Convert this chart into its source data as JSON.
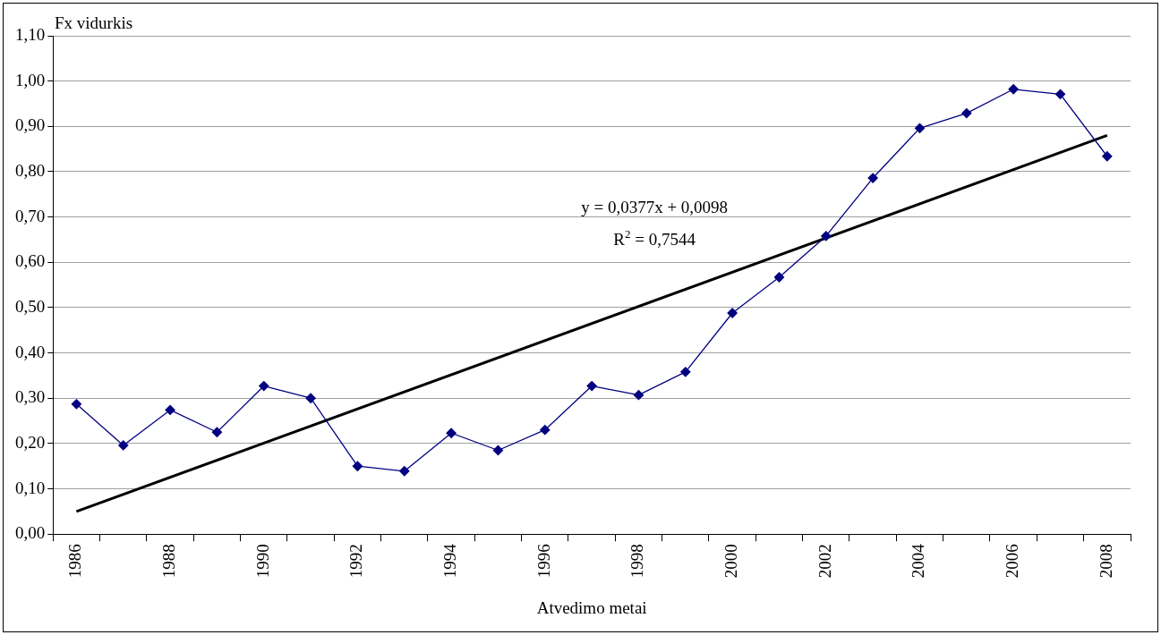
{
  "chart_data": {
    "type": "line",
    "xlabel": "Atvedimo metai",
    "ylabel": "Fx vidurkis",
    "categories": [
      "1986",
      null,
      "1988",
      null,
      "1990",
      null,
      "1992",
      null,
      "1994",
      null,
      "1996",
      null,
      "1998",
      null,
      "2000",
      null,
      "2002",
      null,
      "2004",
      null,
      "2006",
      null,
      "2008"
    ],
    "series": [
      {
        "color": "#000080",
        "marker": "diamond",
        "values": [
          0.287,
          0.196,
          0.274,
          0.225,
          0.327,
          0.3,
          0.15,
          0.139,
          0.223,
          0.185,
          0.23,
          0.327,
          0.307,
          0.358,
          0.488,
          0.567,
          0.658,
          0.786,
          0.896,
          0.929,
          0.982,
          0.971,
          0.834
        ]
      },
      {
        "type": "line",
        "color": "#000000",
        "marker": "none",
        "values": [
          0.05,
          null,
          null,
          null,
          null,
          null,
          null,
          null,
          null,
          null,
          null,
          null,
          null,
          null,
          null,
          null,
          null,
          null,
          null,
          null,
          null,
          null,
          0.88
        ]
      }
    ],
    "ylim": [
      0,
      1.1
    ],
    "yticks": [
      {
        "value": 0,
        "label": "0,00"
      },
      {
        "value": 0.1,
        "label": "0,10"
      },
      {
        "value": 0.2,
        "label": "0,20"
      },
      {
        "value": 0.3,
        "label": "0,30"
      },
      {
        "value": 0.4,
        "label": "0,40"
      },
      {
        "value": 0.5,
        "label": "0,50"
      },
      {
        "value": 0.6,
        "label": "0,60"
      },
      {
        "value": 0.7,
        "label": "0,70"
      },
      {
        "value": 0.8,
        "label": "0,80"
      },
      {
        "value": 0.9,
        "label": "0,90"
      },
      {
        "value": 1.0,
        "label": "1,00"
      },
      {
        "value": 1.1,
        "label": "1,10"
      }
    ],
    "grid": "y",
    "legend": false,
    "annotations": [
      "y = 0,0377x + 0,0098",
      "R$^{2}$ = 0,7544"
    ]
  }
}
